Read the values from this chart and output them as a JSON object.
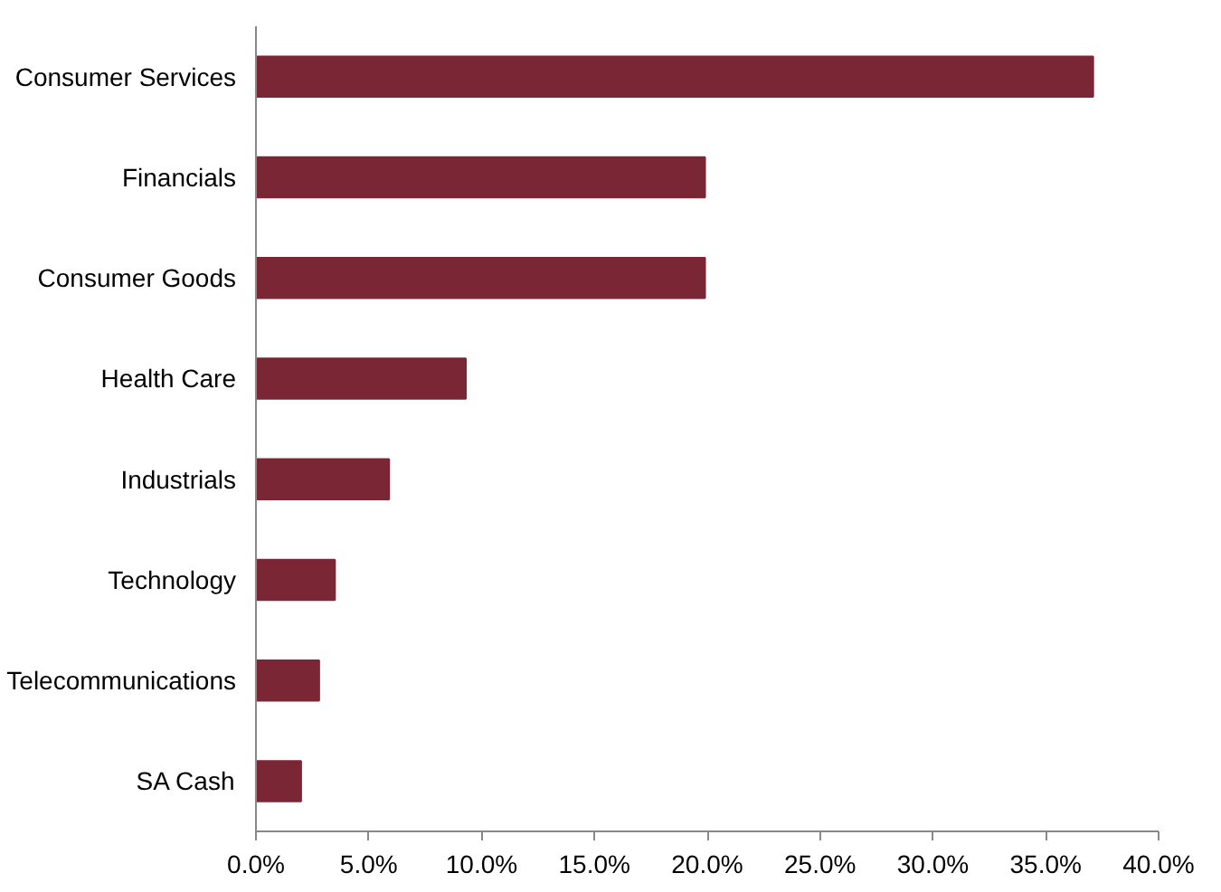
{
  "chart_data": {
    "type": "bar",
    "orientation": "horizontal",
    "categories": [
      "Consumer Services",
      "Financials",
      "Consumer Goods",
      "Health Care",
      "Industrials",
      "Technology",
      "Telecommunications",
      "SA Cash"
    ],
    "values": [
      37.1,
      19.9,
      19.9,
      9.3,
      5.9,
      3.5,
      2.8,
      2.0
    ],
    "color": "#7b2635",
    "xlim": [
      0,
      40
    ],
    "xticks": [
      {
        "value": 0,
        "label": "0.0%"
      },
      {
        "value": 5,
        "label": "5.0%"
      },
      {
        "value": 10,
        "label": "10.0%"
      },
      {
        "value": 15,
        "label": "15.0%"
      },
      {
        "value": 20,
        "label": "20.0%"
      },
      {
        "value": 25,
        "label": "25.0%"
      },
      {
        "value": 30,
        "label": "30.0%"
      },
      {
        "value": 35,
        "label": "35.0%"
      },
      {
        "value": 40,
        "label": "40.0%"
      }
    ],
    "grid": false
  }
}
